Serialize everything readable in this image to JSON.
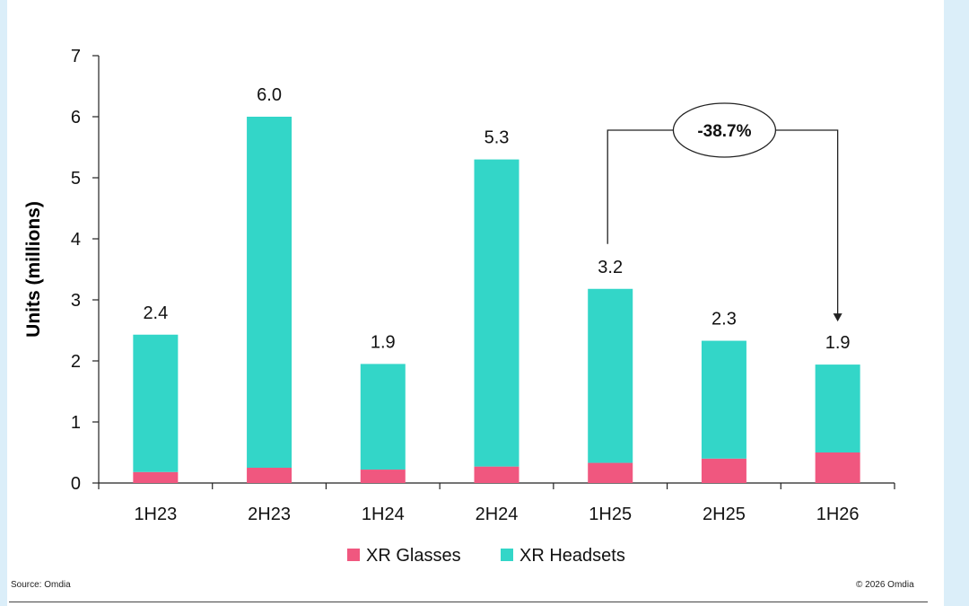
{
  "chart_data": {
    "type": "bar",
    "stacked": true,
    "categories": [
      "1H23",
      "2H23",
      "1H24",
      "2H24",
      "1H25",
      "2H25",
      "1H26"
    ],
    "series": [
      {
        "name": "XR Glasses",
        "color": "#f0577f",
        "values": [
          0.18,
          0.25,
          0.22,
          0.27,
          0.33,
          0.4,
          0.5
        ]
      },
      {
        "name": "XR Headsets",
        "color": "#33d6c8",
        "values": [
          2.25,
          5.75,
          1.73,
          5.03,
          2.85,
          1.93,
          1.44
        ]
      }
    ],
    "totals": [
      "2.4",
      "6.0",
      "1.9",
      "5.3",
      "3.2",
      "2.3",
      "1.9"
    ],
    "ylabel": "Units (millions)",
    "ylim": [
      0,
      7
    ],
    "yticks": [
      "0",
      "1",
      "2",
      "3",
      "4",
      "5",
      "6",
      "7"
    ],
    "grid": false,
    "legend_position": "bottom",
    "annotation": {
      "label": "-38.7%",
      "from": "1H25",
      "to": "1H26"
    }
  },
  "footer": {
    "source": "Source: Omdia",
    "copyright": "© 2026 Omdia"
  }
}
